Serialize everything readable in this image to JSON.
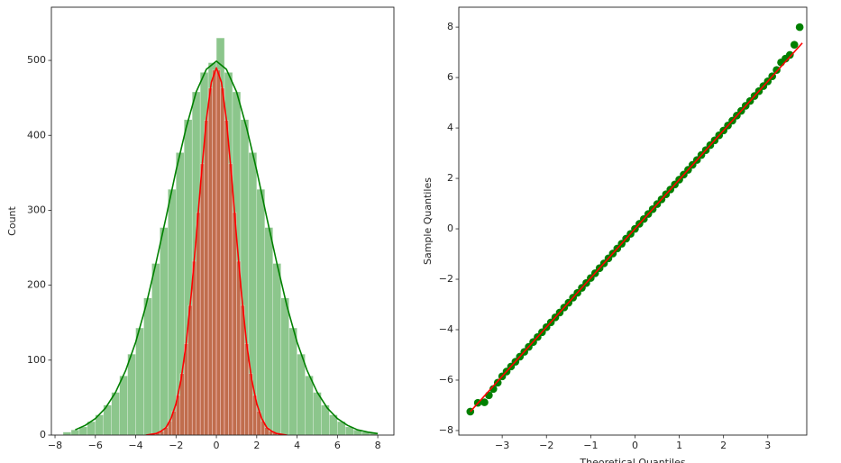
{
  "chart_data": [
    {
      "type": "histogram",
      "ylabel": "Count",
      "xlim": [
        -8.18,
        8.8
      ],
      "ylim": [
        0,
        571
      ],
      "xticks": [
        {
          "value": -8,
          "label": "−8"
        },
        {
          "value": -6,
          "label": "−6"
        },
        {
          "value": -4,
          "label": "−4"
        },
        {
          "value": -2,
          "label": "−2"
        },
        0,
        2,
        4,
        6,
        8
      ],
      "yticks": [
        0,
        100,
        200,
        300,
        400,
        500
      ],
      "series": [
        {
          "color": "green",
          "bins": [
            -7.6,
            -7.2,
            -6.8,
            -6.4,
            -6.0,
            -5.6,
            -5.2,
            -4.8,
            -4.4,
            -4.0,
            -3.6,
            -3.2,
            -2.8,
            -2.4,
            -2.0,
            -1.6,
            -1.2,
            -0.8,
            -0.4,
            0.0,
            0.4,
            0.8,
            1.2,
            1.6,
            2.0,
            2.4,
            2.8,
            3.2,
            3.6,
            4.0,
            4.4,
            4.8,
            5.2,
            5.6,
            6.0,
            6.4,
            6.8,
            7.2,
            7.6,
            8.0
          ],
          "values": [
            4,
            7,
            11,
            18,
            27,
            40,
            57,
            79,
            108,
            143,
            183,
            229,
            277,
            328,
            377,
            421,
            458,
            484,
            497,
            530,
            484,
            458,
            421,
            377,
            328,
            277,
            229,
            183,
            143,
            108,
            79,
            57,
            40,
            27,
            18,
            11,
            7,
            4,
            3
          ],
          "kde_x": [
            -7,
            -6.5,
            -6,
            -5.5,
            -5,
            -4.5,
            -4,
            -3.5,
            -3,
            -2.5,
            -2,
            -1.5,
            -1,
            -0.5,
            0,
            0.5,
            1,
            1.5,
            2,
            2.5,
            3,
            3.5,
            4,
            4.5,
            5,
            5.5,
            6,
            6.5,
            7,
            7.5,
            8
          ],
          "kde_values": [
            7,
            13,
            22,
            36,
            57,
            86,
            124,
            172,
            229,
            290,
            353,
            410,
            458,
            488,
            499,
            488,
            458,
            410,
            353,
            290,
            229,
            172,
            124,
            86,
            57,
            36,
            22,
            13,
            7,
            4,
            2
          ]
        },
        {
          "color": "red",
          "bins": [
            -3.6,
            -3.4,
            -3.2,
            -3.0,
            -2.8,
            -2.6,
            -2.4,
            -2.2,
            -2.0,
            -1.8,
            -1.6,
            -1.4,
            -1.2,
            -1.0,
            -0.8,
            -0.6,
            -0.4,
            -0.2,
            0.0,
            0.2,
            0.4,
            0.6,
            0.8,
            1.0,
            1.2,
            1.4,
            1.6,
            1.8,
            2.0,
            2.2,
            2.4,
            2.6,
            2.8,
            3.0,
            3.2,
            3.4,
            3.6
          ],
          "values": [
            0,
            1,
            1,
            3,
            5,
            10,
            19,
            32,
            53,
            82,
            122,
            173,
            232,
            297,
            362,
            420,
            463,
            487,
            487,
            463,
            420,
            362,
            297,
            232,
            173,
            122,
            82,
            53,
            32,
            19,
            10,
            5,
            3,
            1,
            1,
            0
          ],
          "kde_x": [
            -3.5,
            -3.25,
            -3,
            -2.75,
            -2.5,
            -2.25,
            -2,
            -1.75,
            -1.5,
            -1.25,
            -1,
            -0.75,
            -0.5,
            -0.25,
            0,
            0.25,
            0.5,
            0.75,
            1,
            1.25,
            1.5,
            1.75,
            2,
            2.25,
            2.5,
            2.75,
            3,
            3.25,
            3.5
          ],
          "kde_values": [
            0,
            1,
            2,
            5,
            10,
            22,
            42,
            74,
            122,
            187,
            264,
            346,
            420,
            471,
            490,
            471,
            420,
            346,
            264,
            187,
            122,
            74,
            42,
            22,
            10,
            5,
            2,
            1,
            0
          ]
        }
      ]
    },
    {
      "type": "scatter",
      "xlabel": "Theoretical Quantiles",
      "ylabel": "Sample Quantiles",
      "xlim": [
        -3.98,
        3.88
      ],
      "ylim": [
        -8.18,
        8.79
      ],
      "xticks": [
        {
          "value": -3,
          "label": "−3"
        },
        {
          "value": -2,
          "label": "−2"
        },
        {
          "value": -1,
          "label": "−1"
        },
        0,
        1,
        2,
        3
      ],
      "yticks": [
        {
          "value": -8,
          "label": "−8"
        },
        {
          "value": -6,
          "label": "−6"
        },
        {
          "value": -4,
          "label": "−4"
        },
        {
          "value": -2,
          "label": "−2"
        },
        0,
        2,
        4,
        6,
        8
      ],
      "color": "green",
      "x": [
        -3.72,
        -3.55,
        -3.4,
        -3.3,
        -3.2,
        -3.1,
        -3.0,
        -2.9,
        -2.8,
        -2.7,
        -2.6,
        -2.5,
        -2.4,
        -2.3,
        -2.2,
        -2.1,
        -2.0,
        -1.9,
        -1.8,
        -1.7,
        -1.6,
        -1.5,
        -1.4,
        -1.3,
        -1.2,
        -1.1,
        -1.0,
        -0.9,
        -0.8,
        -0.7,
        -0.6,
        -0.5,
        -0.4,
        -0.3,
        -0.2,
        -0.1,
        0.0,
        0.1,
        0.2,
        0.3,
        0.4,
        0.5,
        0.6,
        0.7,
        0.8,
        0.9,
        1.0,
        1.1,
        1.2,
        1.3,
        1.4,
        1.5,
        1.6,
        1.7,
        1.8,
        1.9,
        2.0,
        2.1,
        2.2,
        2.3,
        2.4,
        2.5,
        2.6,
        2.7,
        2.8,
        2.9,
        3.0,
        3.1,
        3.2,
        3.3,
        3.4,
        3.5,
        3.6,
        3.72
      ],
      "y": [
        -7.25,
        -6.9,
        -6.88,
        -6.6,
        -6.35,
        -6.1,
        -5.85,
        -5.66,
        -5.46,
        -5.27,
        -5.07,
        -4.88,
        -4.68,
        -4.49,
        -4.29,
        -4.1,
        -3.9,
        -3.71,
        -3.51,
        -3.32,
        -3.12,
        -2.93,
        -2.73,
        -2.54,
        -2.34,
        -2.15,
        -1.95,
        -1.76,
        -1.56,
        -1.37,
        -1.17,
        -0.98,
        -0.78,
        -0.59,
        -0.39,
        -0.2,
        0,
        0.2,
        0.39,
        0.59,
        0.78,
        0.98,
        1.17,
        1.37,
        1.56,
        1.76,
        1.95,
        2.15,
        2.34,
        2.54,
        2.73,
        2.93,
        3.12,
        3.32,
        3.51,
        3.71,
        3.9,
        4.1,
        4.29,
        4.49,
        4.68,
        4.88,
        5.07,
        5.27,
        5.46,
        5.66,
        5.85,
        6.05,
        6.3,
        6.6,
        6.75,
        6.9,
        7.3,
        8.0
      ],
      "line": {
        "color": "red",
        "x": [
          -3.72,
          3.78
        ],
        "y": [
          -7.25,
          7.37
        ]
      }
    }
  ]
}
